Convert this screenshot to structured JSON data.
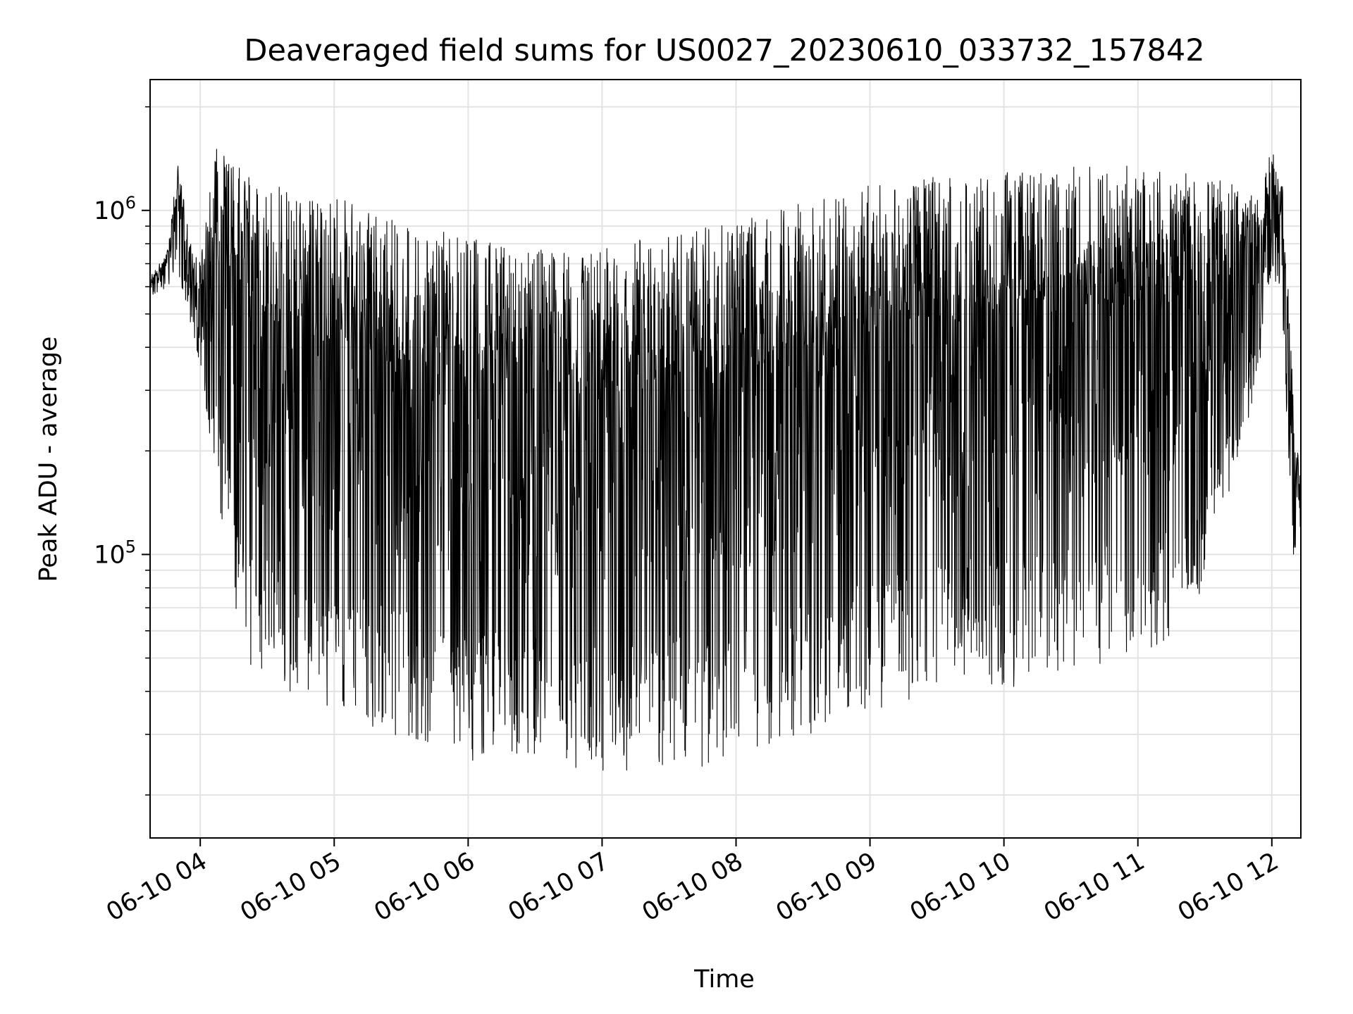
{
  "chart_data": {
    "type": "line",
    "title": "Deaveraged field sums for US0027_20230610_033732_157842",
    "xlabel": "Time",
    "ylabel": "Peak ADU - average",
    "y_scale": "log",
    "ylim": [
      15000,
      2400000
    ],
    "xlim": [
      "2023-06-10T03:37:32",
      "2023-06-10T12:13:00"
    ],
    "grid": true,
    "legend": "none",
    "line_color": "#000000",
    "x_ticks": [
      {
        "value": "2023-06-10T04:00",
        "label": "06-10 04"
      },
      {
        "value": "2023-06-10T05:00",
        "label": "06-10 05"
      },
      {
        "value": "2023-06-10T06:00",
        "label": "06-10 06"
      },
      {
        "value": "2023-06-10T07:00",
        "label": "06-10 07"
      },
      {
        "value": "2023-06-10T08:00",
        "label": "06-10 08"
      },
      {
        "value": "2023-06-10T09:00",
        "label": "06-10 09"
      },
      {
        "value": "2023-06-10T10:00",
        "label": "06-10 10"
      },
      {
        "value": "2023-06-10T11:00",
        "label": "06-10 11"
      },
      {
        "value": "2023-06-10T12:00",
        "label": "06-10 12"
      }
    ],
    "y_ticks": [
      {
        "value": 100000,
        "base": "10",
        "exp": "5"
      },
      {
        "value": 1000000,
        "base": "10",
        "exp": "6"
      }
    ],
    "series": [
      {
        "envelope": {
          "x": [
            "03:38",
            "03:45",
            "03:50",
            "03:55",
            "04:00",
            "04:05",
            "04:10",
            "04:15",
            "04:20",
            "04:30",
            "04:40",
            "04:50",
            "05:00",
            "05:15",
            "05:30",
            "05:45",
            "06:00",
            "06:15",
            "06:30",
            "06:45",
            "07:00",
            "07:15",
            "07:30",
            "07:45",
            "08:00",
            "08:15",
            "08:30",
            "08:45",
            "09:00",
            "09:15",
            "09:30",
            "09:45",
            "10:00",
            "10:15",
            "10:30",
            "10:45",
            "11:00",
            "11:15",
            "11:30",
            "11:45",
            "11:55",
            "12:00",
            "12:05",
            "12:08",
            "12:10",
            "12:13"
          ],
          "upper": [
            650000,
            750000,
            1400000,
            850000,
            700000,
            1500000,
            1600000,
            1400000,
            1300000,
            1200000,
            1150000,
            1100000,
            1100000,
            1000000,
            950000,
            900000,
            850000,
            800000,
            780000,
            750000,
            800000,
            820000,
            850000,
            900000,
            950000,
            1000000,
            1050000,
            1100000,
            1200000,
            1250000,
            1250000,
            1250000,
            1300000,
            1300000,
            1350000,
            1350000,
            1350000,
            1300000,
            1250000,
            1200000,
            1050000,
            1600000,
            1150000,
            500000,
            250000,
            160000
          ],
          "lower": [
            550000,
            600000,
            650000,
            500000,
            300000,
            200000,
            120000,
            70000,
            50000,
            42000,
            38000,
            36000,
            34000,
            30000,
            28000,
            26000,
            25000,
            24000,
            23500,
            23000,
            22500,
            22500,
            23000,
            24000,
            25000,
            27000,
            29000,
            32000,
            34000,
            36000,
            38000,
            40000,
            40000,
            42000,
            44000,
            46000,
            48000,
            52000,
            80000,
            180000,
            350000,
            700000,
            450000,
            150000,
            90000,
            120000
          ]
        }
      }
    ]
  }
}
